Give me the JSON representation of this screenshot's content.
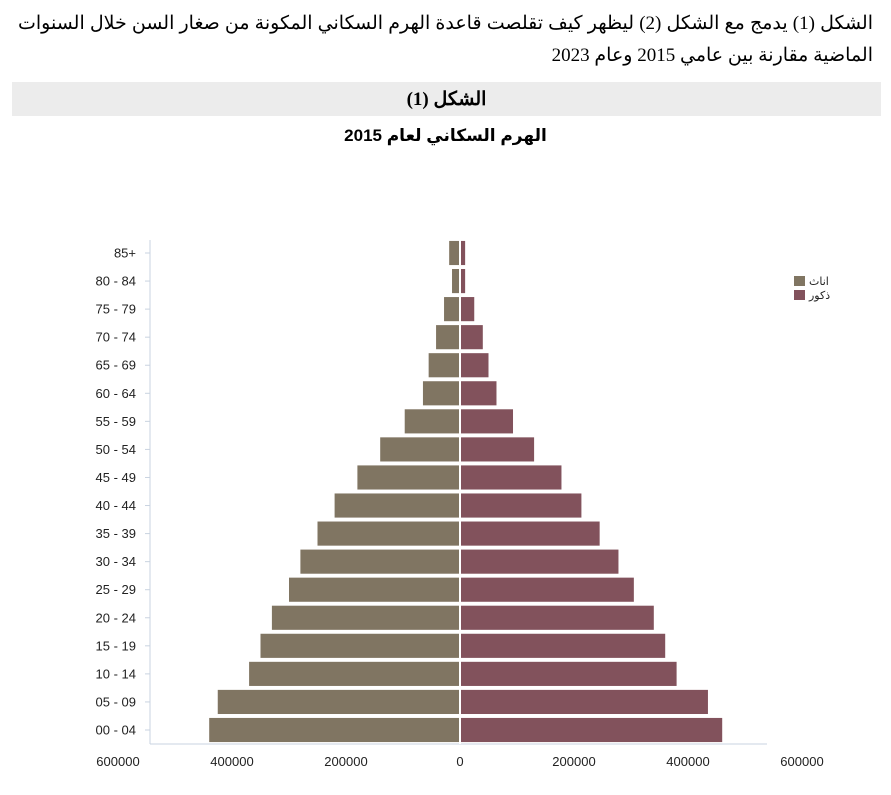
{
  "intro_text": "الشكل (1) يدمج مع الشكل (2) ليظهر كيف تقلصت قاعدة الهرم السكاني المكونة من صغار السن خلال السنوات الماضية مقارنة بين عامي 2015 وعام 2023",
  "figure_label": "الشكل (1)",
  "chart_data": {
    "type": "bar",
    "orientation": "horizontal-pyramid",
    "title": "الهرم السكاني لعام 2015",
    "categories": [
      "00 - 04",
      "05 - 09",
      "10 - 14",
      "15 - 19",
      "20 - 24",
      "25 - 29",
      "30 - 34",
      "35 - 39",
      "40 - 44",
      "45 - 49",
      "50 - 54",
      "55 - 59",
      "60 - 64",
      "65 - 69",
      "70 - 74",
      "75 - 79",
      "80 - 84",
      "85+"
    ],
    "series": [
      {
        "name": "اناث",
        "side": "left",
        "color": "#807562",
        "values": [
          440000,
          425000,
          370000,
          350000,
          330000,
          300000,
          280000,
          250000,
          220000,
          180000,
          140000,
          97000,
          65000,
          55000,
          42000,
          28000,
          14000,
          19000
        ]
      },
      {
        "name": "ذكور",
        "side": "right",
        "color": "#82525c",
        "values": [
          460000,
          435000,
          380000,
          360000,
          340000,
          305000,
          278000,
          245000,
          213000,
          178000,
          130000,
          93000,
          64000,
          50000,
          40000,
          25000,
          9000,
          9000
        ]
      }
    ],
    "xlim": [
      -600000,
      600000
    ],
    "xticks": [
      -600000,
      -400000,
      -200000,
      0,
      200000,
      400000,
      600000
    ],
    "xtick_labels": [
      "600000",
      "400000",
      "200000",
      "0",
      "200000",
      "400000",
      "600000"
    ],
    "legend_position": "right",
    "grid": false
  }
}
